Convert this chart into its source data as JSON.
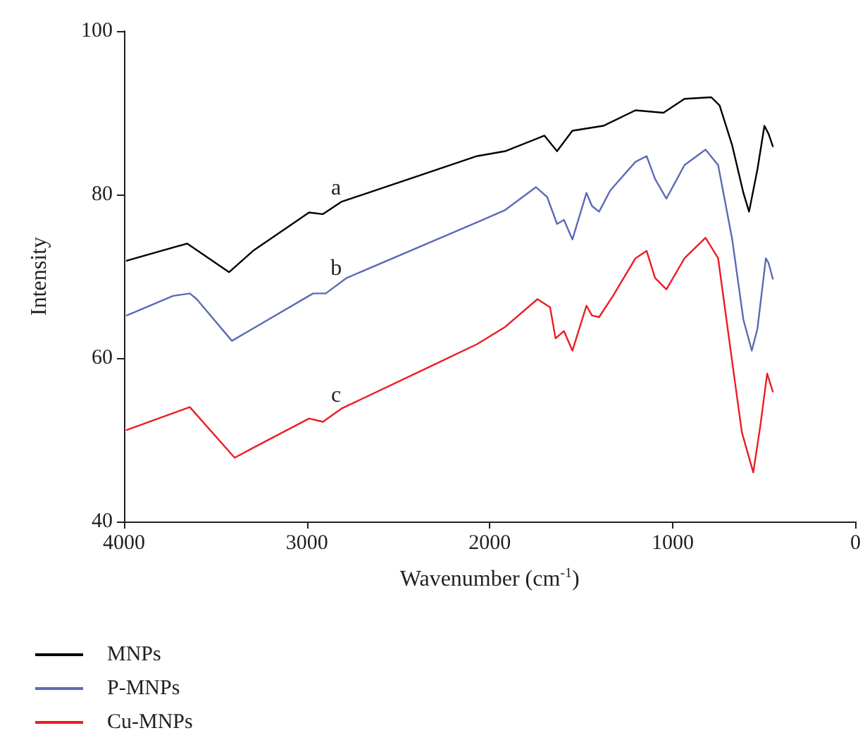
{
  "chart_data": {
    "type": "line",
    "xlabel": "Wavenumber (cm$^{-1}$)",
    "ylabel": "Intensity",
    "xlim": [
      4000,
      0
    ],
    "xticks": [
      4000,
      3000,
      2000,
      1000,
      0
    ],
    "ylim": [
      40,
      100
    ],
    "yticks": [
      40,
      60,
      80,
      100
    ],
    "grid": false,
    "legend": "bottom left",
    "marker": "none",
    "line_style": "solid",
    "annotations": [
      "a",
      "b",
      "c"
    ],
    "series": [
      {
        "name": "MNPs",
        "color": "#000000",
        "x": [
          3985,
          3655,
          3425,
          3295,
          2988,
          2912,
          2812,
          2069,
          1916,
          1701,
          1632,
          1548,
          1379,
          1203,
          1050,
          935,
          789,
          743,
          674,
          613,
          582,
          536,
          498,
          475,
          452
        ],
        "values": [
          71.9,
          74.0,
          70.5,
          73.1,
          77.8,
          77.6,
          79.1,
          84.7,
          85.3,
          87.2,
          85.3,
          87.8,
          88.4,
          90.3,
          90.0,
          91.7,
          91.9,
          90.9,
          86.0,
          80.2,
          77.9,
          83.1,
          88.4,
          87.4,
          85.9
        ]
      },
      {
        "name": "P-MNPs",
        "color": "#5b6bb5",
        "x": [
          3985,
          3732,
          3640,
          3602,
          3410,
          3295,
          2966,
          2897,
          2782,
          2069,
          1916,
          1747,
          1686,
          1632,
          1594,
          1548,
          1471,
          1441,
          1402,
          1341,
          1203,
          1142,
          1096,
          1034,
          935,
          820,
          751,
          674,
          613,
          567,
          536,
          490,
          475,
          452
        ],
        "values": [
          65.2,
          67.6,
          67.9,
          67.2,
          62.1,
          63.6,
          67.9,
          67.9,
          69.8,
          76.6,
          78.1,
          80.9,
          79.7,
          76.4,
          76.9,
          74.5,
          80.2,
          78.6,
          77.9,
          80.5,
          84.0,
          84.7,
          81.9,
          79.5,
          83.6,
          85.5,
          83.6,
          74.5,
          64.7,
          60.9,
          63.6,
          72.2,
          71.6,
          69.7
        ]
      },
      {
        "name": "Cu-MNPs",
        "color": "#ed1c24",
        "x": [
          3985,
          3640,
          3395,
          3295,
          2988,
          2912,
          2812,
          2322,
          2069,
          1916,
          1739,
          1670,
          1640,
          1594,
          1548,
          1471,
          1441,
          1402,
          1326,
          1203,
          1142,
          1096,
          1034,
          935,
          820,
          751,
          674,
          621,
          559,
          521,
          483,
          452
        ],
        "values": [
          51.2,
          54.0,
          47.8,
          49.0,
          52.6,
          52.2,
          53.8,
          59.0,
          61.7,
          63.8,
          67.2,
          66.2,
          62.4,
          63.3,
          60.9,
          66.4,
          65.2,
          65.0,
          67.6,
          72.2,
          73.1,
          69.8,
          68.4,
          72.2,
          74.7,
          72.2,
          59.5,
          50.9,
          46.0,
          51.6,
          58.1,
          55.9
        ]
      }
    ]
  }
}
